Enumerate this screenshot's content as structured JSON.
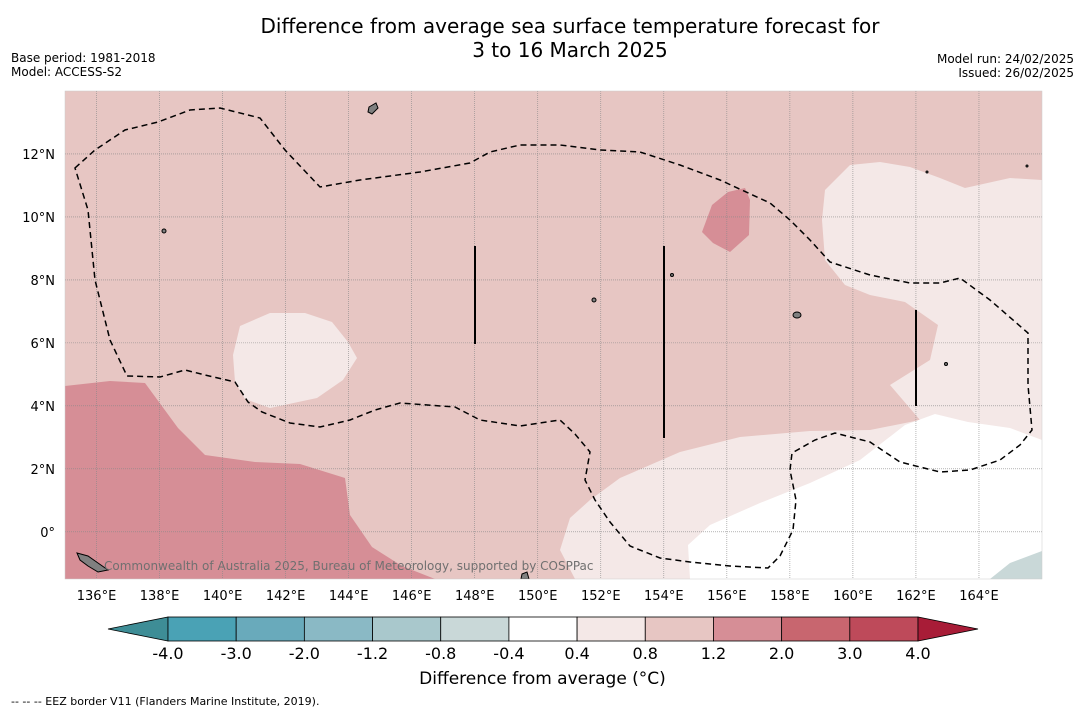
{
  "title": {
    "line1": "Difference from average sea surface temperature forecast for",
    "line2": "3 to 16 March 2025"
  },
  "meta_left": {
    "base_period": "Base period: 1981-2018",
    "model": "Model: ACCESS-S2"
  },
  "meta_right": {
    "model_run": "Model run: 24/02/2025",
    "issued": "Issued: 26/02/2025"
  },
  "map": {
    "lon_range": [
      135,
      166
    ],
    "lat_range": [
      -1.5,
      14
    ],
    "lon_labels": [
      "136°E",
      "138°E",
      "140°E",
      "142°E",
      "144°E",
      "146°E",
      "148°E",
      "150°E",
      "152°E",
      "154°E",
      "156°E",
      "158°E",
      "160°E",
      "162°E",
      "164°E"
    ],
    "lat_labels": [
      "0°",
      "2°N",
      "4°N",
      "6°N",
      "8°N",
      "10°N",
      "12°N"
    ],
    "copyright": "Commonwealth of Australia 2025, Bureau of Meteorology, supported by COSPPac",
    "colors": {
      "anomaly_0.8_1.2": "#e7c6c3",
      "anomaly_0.4_0.8": "#f4e8e7",
      "anomaly_1.2_2.0": "#d68e96",
      "anomaly_-0.4_0.4": "#ffffff",
      "land": "#808080",
      "eez_border": "#000000"
    }
  },
  "colorbar": {
    "ticks": [
      "-4.0",
      "-3.0",
      "-2.0",
      "-1.2",
      "-0.8",
      "-0.4",
      "0.4",
      "0.8",
      "1.2",
      "2.0",
      "3.0",
      "4.0"
    ],
    "colors": [
      "#3e8d96",
      "#4aa2b5",
      "#69aabb",
      "#8ab9c5",
      "#a9c8cc",
      "#c9d8d8",
      "#ffffff",
      "#f4e8e7",
      "#e7c6c3",
      "#d68e96",
      "#c8666f",
      "#be4a5a",
      "#a81c37"
    ],
    "label": "Difference from average (°C)"
  },
  "eez_note": "--  --  -- EEZ border V11 (Flanders Marine Institute, 2019)."
}
